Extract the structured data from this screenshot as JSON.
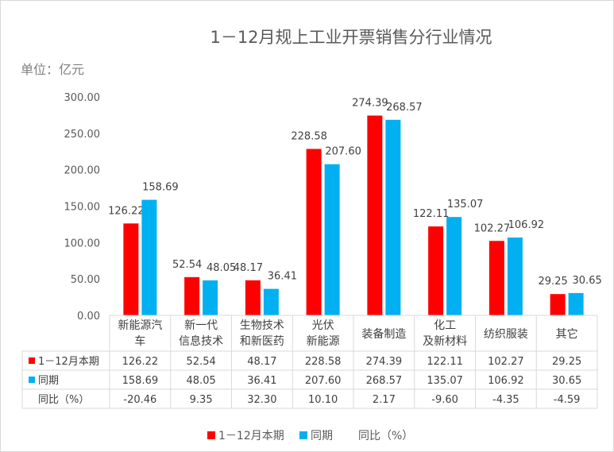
{
  "chart_data": {
    "type": "bar",
    "title": "1－12月规上工业开票销售分行业情况",
    "unit_label": "单位：亿元",
    "categories": [
      [
        "新能源汽",
        "车"
      ],
      [
        "新一代",
        "信息技术"
      ],
      [
        "生物技术",
        "和新医药"
      ],
      [
        "光伏",
        "新能源"
      ],
      [
        "装备制造"
      ],
      [
        "化工",
        "及新材料"
      ],
      [
        "纺织服装"
      ],
      [
        "其它"
      ]
    ],
    "series": [
      {
        "name": "1－12月本期",
        "color": "#ff0000",
        "values": [
          126.22,
          52.54,
          48.17,
          228.58,
          274.39,
          122.11,
          102.27,
          29.25
        ],
        "labels": [
          "126.22",
          "52.54",
          "48.17",
          "228.58",
          "274.39",
          "122.11",
          "102.27",
          "29.25"
        ]
      },
      {
        "name": "同期",
        "color": "#00b0f0",
        "values": [
          158.69,
          48.05,
          36.41,
          207.6,
          268.57,
          135.07,
          106.92,
          30.65
        ],
        "labels": [
          "158.69",
          "48.05",
          "36.41",
          "207.60",
          "268.57",
          "135.07",
          "106.92",
          "30.65"
        ]
      }
    ],
    "yoy": {
      "name": "同比（%）",
      "labels": [
        "-20.46",
        "9.35",
        "32.30",
        "10.10",
        "2.17",
        "-9.60",
        "-4.35",
        "-4.59"
      ]
    },
    "ylim": [
      0,
      300
    ],
    "yticks": [
      "0.00",
      "50.00",
      "100.00",
      "150.00",
      "200.00",
      "250.00",
      "300.00"
    ],
    "legend_position": "bottom",
    "grid": false
  }
}
